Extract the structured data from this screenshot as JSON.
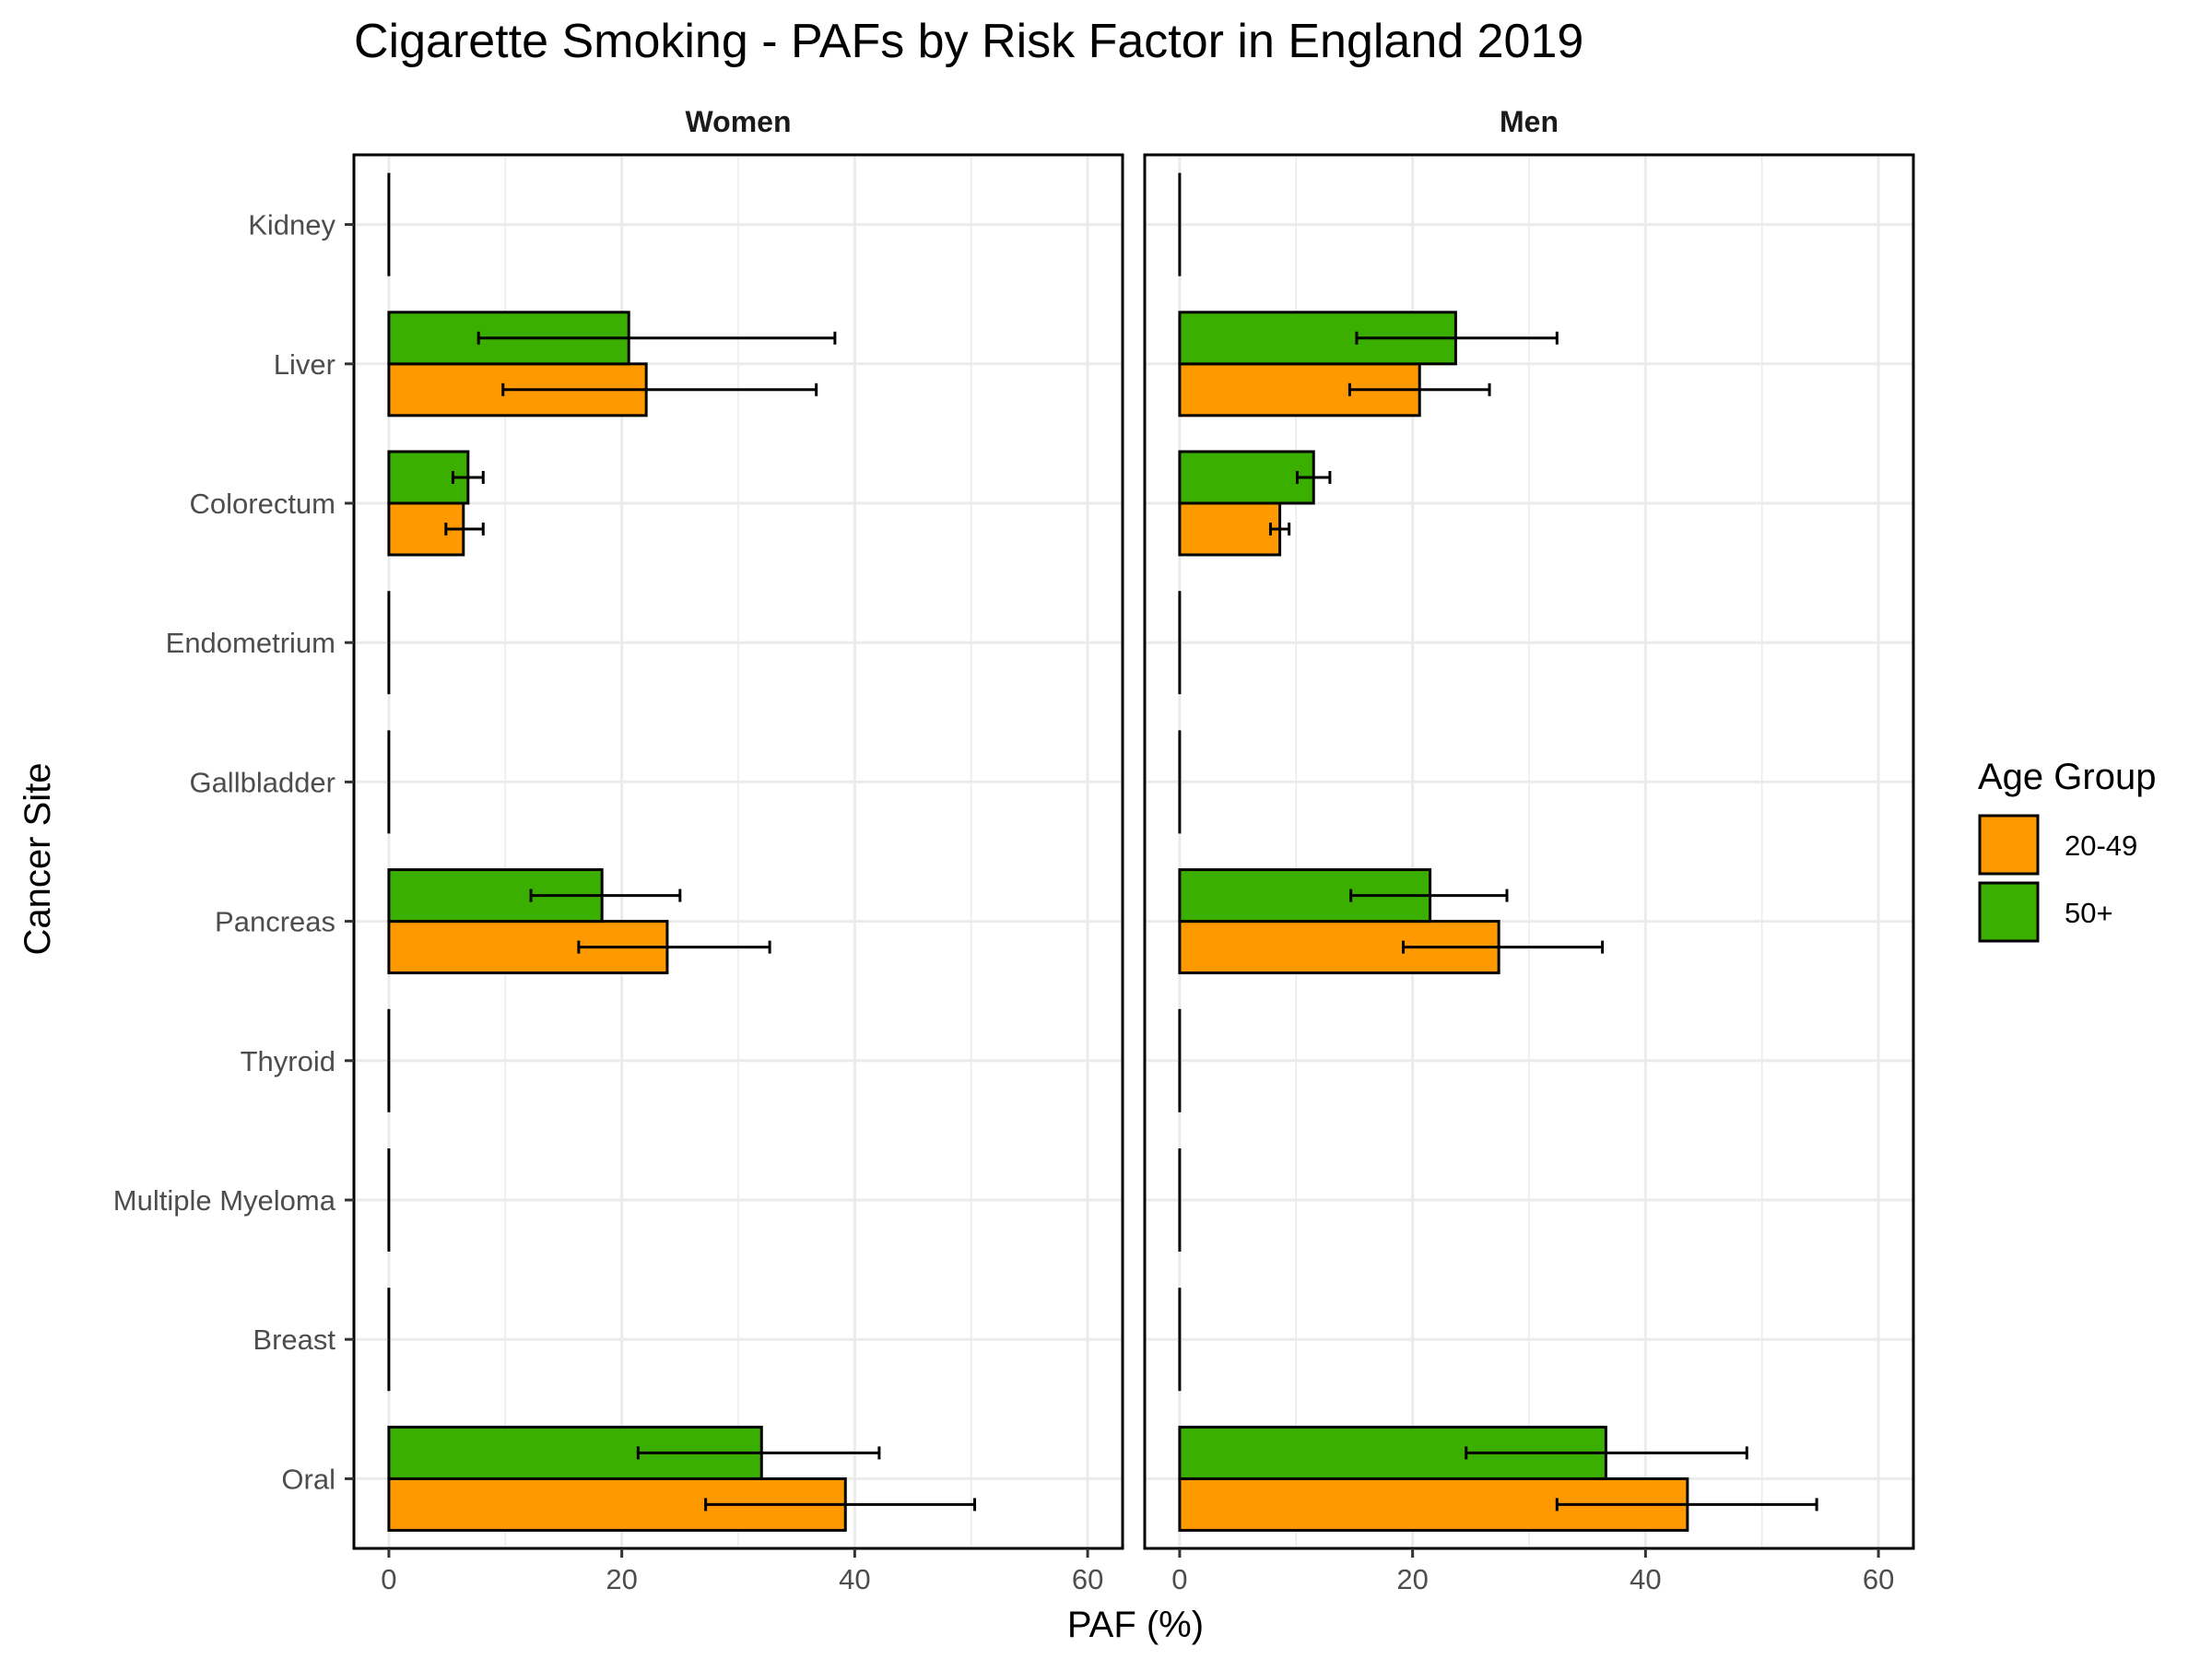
{
  "chart_data": {
    "type": "bar",
    "orientation": "horizontal",
    "title": "Cigarette Smoking  - PAFs by Risk Factor in England 2019",
    "xlabel": "PAF (%)",
    "ylabel": "Cancer Site",
    "xlim": [
      -3,
      63
    ],
    "xticks": [
      "0",
      "20",
      "40",
      "60"
    ],
    "grid": true,
    "legend": {
      "title": "Age Group",
      "position": "right"
    },
    "categories": [
      "Kidney",
      "Liver",
      "Colorectum",
      "Endometrium",
      "Gallbladder",
      "Pancreas",
      "Thyroid",
      "Multiple Myeloma",
      "Breast",
      "Oral"
    ],
    "panels": [
      {
        "name": "Women",
        "series": [
          {
            "name": "20-49",
            "color": "#FF9900",
            "values": [
              0,
              22.1,
              6.4,
              0,
              0,
              23.9,
              0,
              0,
              0,
              39.2
            ],
            "lower": [
              null,
              9.8,
              4.9,
              null,
              null,
              16.3,
              null,
              null,
              null,
              27.2
            ],
            "upper": [
              null,
              36.7,
              8.1,
              null,
              null,
              32.7,
              null,
              null,
              null,
              50.3
            ]
          },
          {
            "name": "50+",
            "color": "#3AAF00",
            "values": [
              0,
              20.6,
              6.8,
              0,
              0,
              18.3,
              0,
              0,
              0,
              32.0
            ],
            "lower": [
              null,
              7.7,
              5.5,
              null,
              null,
              12.2,
              null,
              null,
              null,
              21.4
            ],
            "upper": [
              null,
              38.3,
              8.1,
              null,
              null,
              25.0,
              null,
              null,
              null,
              42.1
            ]
          }
        ]
      },
      {
        "name": "Men",
        "series": [
          {
            "name": "20-49",
            "color": "#FF9900",
            "values": [
              0,
              20.6,
              8.6,
              0,
              0,
              27.4,
              0,
              0,
              0,
              43.6
            ],
            "lower": [
              null,
              14.6,
              7.8,
              null,
              null,
              19.2,
              null,
              null,
              null,
              32.4
            ],
            "upper": [
              null,
              26.6,
              9.4,
              null,
              null,
              36.3,
              null,
              null,
              null,
              54.7
            ]
          },
          {
            "name": "50+",
            "color": "#3AAF00",
            "values": [
              0,
              23.7,
              11.5,
              0,
              0,
              21.5,
              0,
              0,
              0,
              36.6
            ],
            "lower": [
              null,
              15.2,
              10.1,
              null,
              null,
              14.7,
              null,
              null,
              null,
              24.6
            ],
            "upper": [
              null,
              32.4,
              12.9,
              null,
              null,
              28.1,
              null,
              null,
              null,
              48.7
            ]
          }
        ]
      }
    ]
  }
}
